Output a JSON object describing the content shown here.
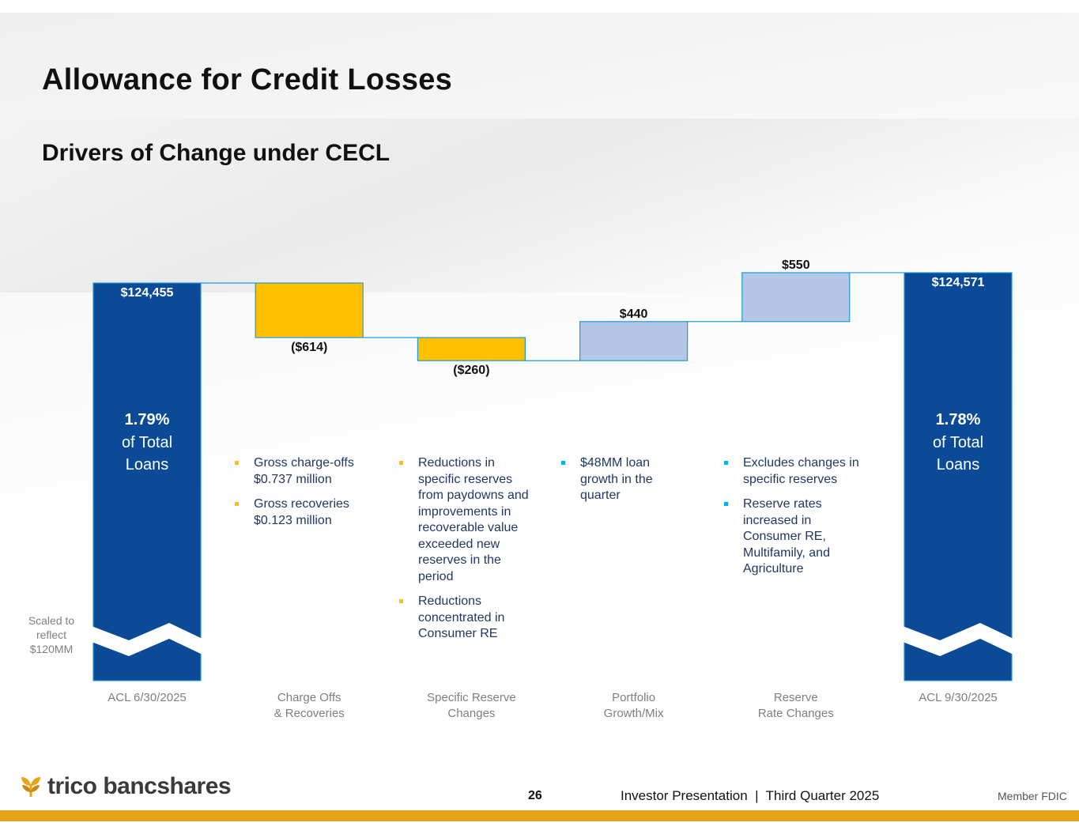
{
  "header": {
    "title": "Allowance for Credit Losses",
    "subtitle": "Drivers of Change under CECL"
  },
  "chart_data": {
    "type": "waterfall",
    "unit": "$ thousands",
    "baseline_scaled_to": 120000,
    "categories": [
      "ACL 6/30/2025",
      "Charge Offs\n& Recoveries",
      "Specific Reserve\nChanges",
      "Portfolio\nGrowth/Mix",
      "Reserve\nRate Changes",
      "ACL 9/30/2025"
    ],
    "steps": [
      {
        "category": "ACL 6/30/2025",
        "kind": "total",
        "value": 124455,
        "label": "$124,455",
        "pct": "1.79%",
        "pct_text": "of Total",
        "pct_text2": "Loans"
      },
      {
        "category": "Charge Offs & Recoveries",
        "kind": "delta",
        "value": -614,
        "label": "($614)"
      },
      {
        "category": "Specific Reserve Changes",
        "kind": "delta",
        "value": -260,
        "label": "($260)"
      },
      {
        "category": "Portfolio Growth/Mix",
        "kind": "delta",
        "value": 440,
        "label": "$440"
      },
      {
        "category": "Reserve Rate Changes",
        "kind": "delta",
        "value": 550,
        "label": "$550"
      },
      {
        "category": "ACL 9/30/2025",
        "kind": "total",
        "value": 124571,
        "label": "$124,571",
        "pct": "1.78%",
        "pct_text": "of Total",
        "pct_text2": "Loans"
      }
    ],
    "colors": {
      "total": "#0a4a97",
      "negative": "#ffc000",
      "positive": "#b4c7e7",
      "border": "#1e9bd7",
      "total_label": "#ffffff",
      "delta_label": "#111111",
      "axis_label": "#7f7f7f"
    }
  },
  "bullets": [
    {
      "color": "#ffc000",
      "items": [
        "Gross charge-offs $0.737 million",
        "Gross recoveries $0.123 million"
      ]
    },
    {
      "color": "#ffc000",
      "items": [
        "Reductions in specific reserves from paydowns and improvements in recoverable value exceeded new reserves in the period",
        "Reductions concentrated in Consumer RE"
      ]
    },
    {
      "color": "#00b0f0",
      "items": [
        "$48MM loan growth in the quarter"
      ]
    },
    {
      "color": "#00b0f0",
      "items": [
        "Excludes changes in specific reserves",
        "Reserve rates increased in Consumer RE, Multifamily, and Agriculture"
      ]
    }
  ],
  "scaled_note": "Scaled to reflect $120MM",
  "footer": {
    "logo_text": "trico bancshares",
    "page_number": "26",
    "presentation": "Investor Presentation  |  Third Quarter 2025",
    "fdic": "Member FDIC"
  }
}
